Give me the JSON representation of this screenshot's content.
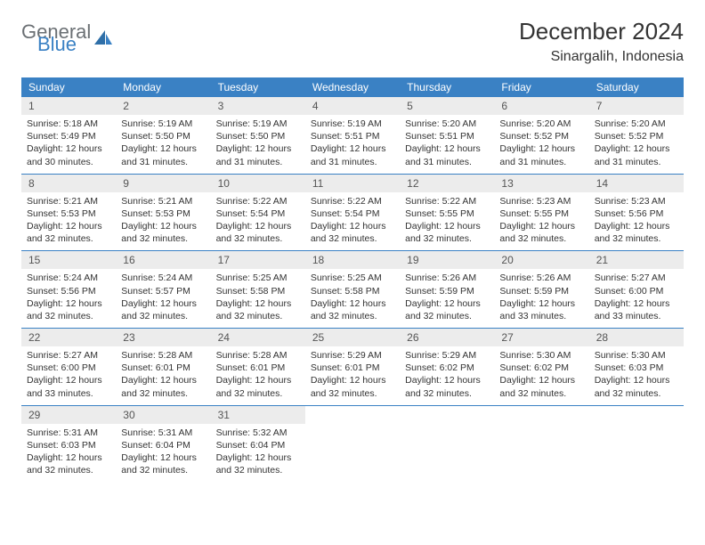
{
  "brand": {
    "word1": "General",
    "word2": "Blue"
  },
  "title": {
    "monthYear": "December 2024",
    "location": "Sinargalih, Indonesia"
  },
  "colors": {
    "headerBar": "#3a81c4",
    "headerText": "#ffffff",
    "dayNumBg": "#ececec",
    "dayNumText": "#555555",
    "bodyText": "#333333",
    "rowBorder": "#3a81c4",
    "logoGray": "#6b7074",
    "logoBlue": "#3a81c4",
    "pageBg": "#ffffff"
  },
  "layout": {
    "columns": 7,
    "cellPadding": 6,
    "fontSizeBody": 10.5,
    "fontSizeDayNum": 12,
    "fontSizeWeekday": 12
  },
  "weekdays": [
    "Sunday",
    "Monday",
    "Tuesday",
    "Wednesday",
    "Thursday",
    "Friday",
    "Saturday"
  ],
  "weeks": [
    [
      {
        "n": "1",
        "sr": "5:18 AM",
        "ss": "5:49 PM",
        "dl": "12 hours and 30 minutes."
      },
      {
        "n": "2",
        "sr": "5:19 AM",
        "ss": "5:50 PM",
        "dl": "12 hours and 31 minutes."
      },
      {
        "n": "3",
        "sr": "5:19 AM",
        "ss": "5:50 PM",
        "dl": "12 hours and 31 minutes."
      },
      {
        "n": "4",
        "sr": "5:19 AM",
        "ss": "5:51 PM",
        "dl": "12 hours and 31 minutes."
      },
      {
        "n": "5",
        "sr": "5:20 AM",
        "ss": "5:51 PM",
        "dl": "12 hours and 31 minutes."
      },
      {
        "n": "6",
        "sr": "5:20 AM",
        "ss": "5:52 PM",
        "dl": "12 hours and 31 minutes."
      },
      {
        "n": "7",
        "sr": "5:20 AM",
        "ss": "5:52 PM",
        "dl": "12 hours and 31 minutes."
      }
    ],
    [
      {
        "n": "8",
        "sr": "5:21 AM",
        "ss": "5:53 PM",
        "dl": "12 hours and 32 minutes."
      },
      {
        "n": "9",
        "sr": "5:21 AM",
        "ss": "5:53 PM",
        "dl": "12 hours and 32 minutes."
      },
      {
        "n": "10",
        "sr": "5:22 AM",
        "ss": "5:54 PM",
        "dl": "12 hours and 32 minutes."
      },
      {
        "n": "11",
        "sr": "5:22 AM",
        "ss": "5:54 PM",
        "dl": "12 hours and 32 minutes."
      },
      {
        "n": "12",
        "sr": "5:22 AM",
        "ss": "5:55 PM",
        "dl": "12 hours and 32 minutes."
      },
      {
        "n": "13",
        "sr": "5:23 AM",
        "ss": "5:55 PM",
        "dl": "12 hours and 32 minutes."
      },
      {
        "n": "14",
        "sr": "5:23 AM",
        "ss": "5:56 PM",
        "dl": "12 hours and 32 minutes."
      }
    ],
    [
      {
        "n": "15",
        "sr": "5:24 AM",
        "ss": "5:56 PM",
        "dl": "12 hours and 32 minutes."
      },
      {
        "n": "16",
        "sr": "5:24 AM",
        "ss": "5:57 PM",
        "dl": "12 hours and 32 minutes."
      },
      {
        "n": "17",
        "sr": "5:25 AM",
        "ss": "5:58 PM",
        "dl": "12 hours and 32 minutes."
      },
      {
        "n": "18",
        "sr": "5:25 AM",
        "ss": "5:58 PM",
        "dl": "12 hours and 32 minutes."
      },
      {
        "n": "19",
        "sr": "5:26 AM",
        "ss": "5:59 PM",
        "dl": "12 hours and 32 minutes."
      },
      {
        "n": "20",
        "sr": "5:26 AM",
        "ss": "5:59 PM",
        "dl": "12 hours and 33 minutes."
      },
      {
        "n": "21",
        "sr": "5:27 AM",
        "ss": "6:00 PM",
        "dl": "12 hours and 33 minutes."
      }
    ],
    [
      {
        "n": "22",
        "sr": "5:27 AM",
        "ss": "6:00 PM",
        "dl": "12 hours and 33 minutes."
      },
      {
        "n": "23",
        "sr": "5:28 AM",
        "ss": "6:01 PM",
        "dl": "12 hours and 32 minutes."
      },
      {
        "n": "24",
        "sr": "5:28 AM",
        "ss": "6:01 PM",
        "dl": "12 hours and 32 minutes."
      },
      {
        "n": "25",
        "sr": "5:29 AM",
        "ss": "6:01 PM",
        "dl": "12 hours and 32 minutes."
      },
      {
        "n": "26",
        "sr": "5:29 AM",
        "ss": "6:02 PM",
        "dl": "12 hours and 32 minutes."
      },
      {
        "n": "27",
        "sr": "5:30 AM",
        "ss": "6:02 PM",
        "dl": "12 hours and 32 minutes."
      },
      {
        "n": "28",
        "sr": "5:30 AM",
        "ss": "6:03 PM",
        "dl": "12 hours and 32 minutes."
      }
    ],
    [
      {
        "n": "29",
        "sr": "5:31 AM",
        "ss": "6:03 PM",
        "dl": "12 hours and 32 minutes."
      },
      {
        "n": "30",
        "sr": "5:31 AM",
        "ss": "6:04 PM",
        "dl": "12 hours and 32 minutes."
      },
      {
        "n": "31",
        "sr": "5:32 AM",
        "ss": "6:04 PM",
        "dl": "12 hours and 32 minutes."
      },
      null,
      null,
      null,
      null
    ]
  ],
  "labels": {
    "sunrise": "Sunrise: ",
    "sunset": "Sunset: ",
    "daylight": "Daylight: "
  }
}
